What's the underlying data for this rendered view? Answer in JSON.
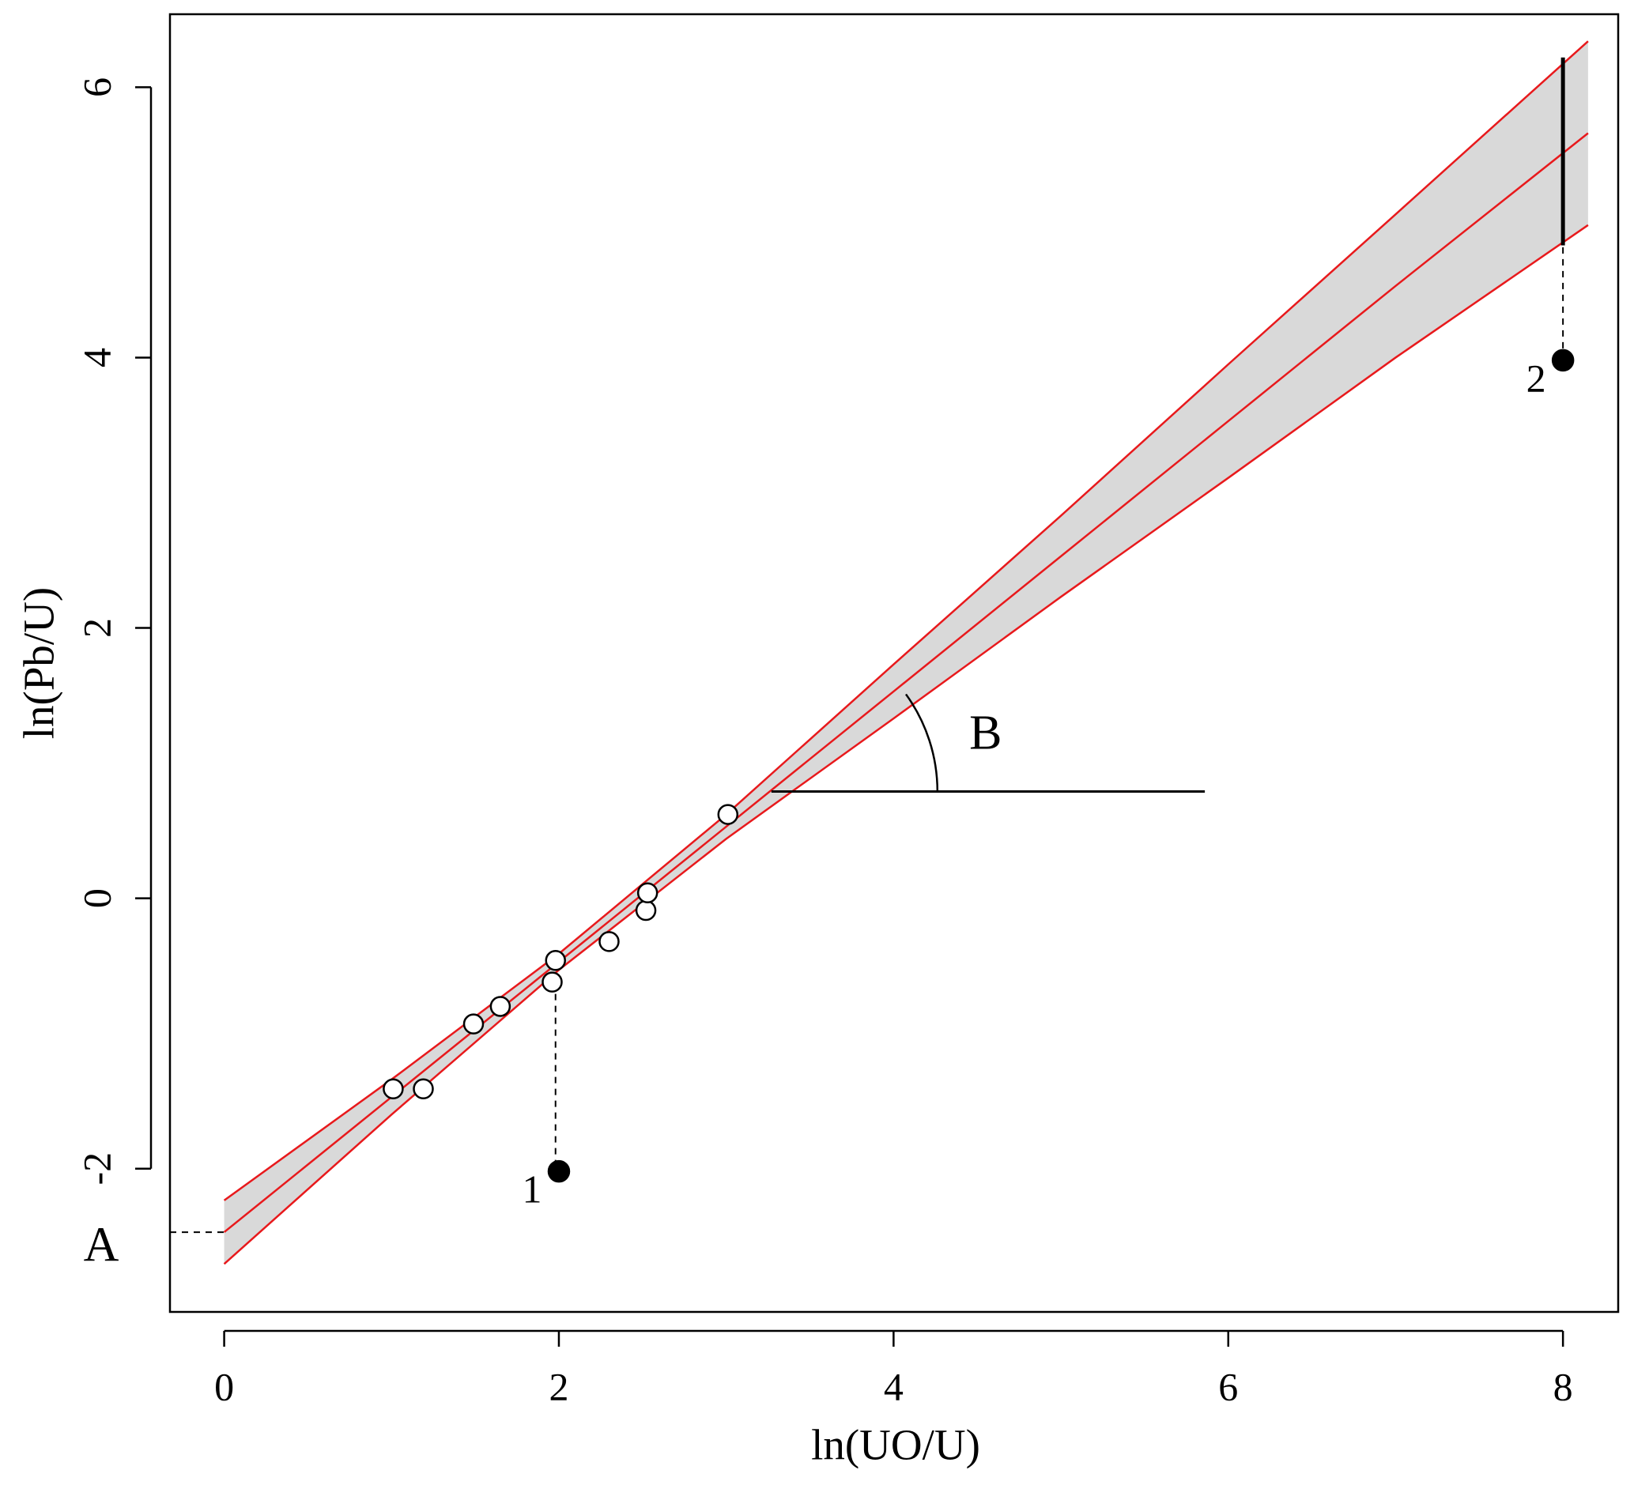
{
  "chart_data": {
    "type": "scatter",
    "x_label": "ln(UO/U)",
    "y_label": "ln(Pb/U)",
    "xlim": [
      -0.324,
      8.33
    ],
    "ylim": [
      -3.06,
      6.54
    ],
    "xticks": [
      0,
      2,
      4,
      6,
      8
    ],
    "yticks": [
      -2,
      0,
      2,
      4,
      6
    ],
    "series": [
      {
        "marker": "open",
        "color": "#000000",
        "x": [
          1.01,
          1.19,
          1.49,
          1.65,
          1.96,
          1.98,
          2.3,
          2.52,
          2.53,
          3.01
        ],
        "values": [
          -1.41,
          -1.41,
          -0.93,
          -0.8,
          -0.62,
          -0.46,
          -0.32,
          -0.09,
          0.04,
          0.62
        ]
      },
      {
        "marker": "filled",
        "color": "#000000",
        "x": [
          2.0,
          8.0
        ],
        "values": [
          -2.02,
          3.98
        ],
        "point_labels": [
          "1",
          "2"
        ]
      }
    ],
    "fit": {
      "color": "#e8191c",
      "band_color": "#d9d9d9",
      "x": [
        0,
        1,
        2,
        3,
        4,
        5,
        6,
        7,
        8.15
      ],
      "values": [
        -2.47,
        -1.47,
        -0.47,
        0.53,
        1.53,
        2.53,
        3.53,
        4.53,
        5.66
      ],
      "upper": [
        -2.235,
        -1.34,
        -0.41,
        0.62,
        1.73,
        2.83,
        3.95,
        5.06,
        6.34
      ],
      "lower": [
        -2.705,
        -1.6,
        -0.53,
        0.44,
        1.33,
        2.23,
        3.11,
        4.0,
        4.98
      ]
    },
    "segments": [
      {
        "x": [
          -0.324,
          0
        ],
        "y": [
          -2.47,
          -2.47
        ],
        "dashed": true,
        "width": 2
      },
      {
        "x": [
          1.98,
          1.98
        ],
        "y": [
          -0.62,
          -2.02
        ],
        "dashed": true,
        "width": 2
      },
      {
        "x": [
          8.0,
          8.0
        ],
        "y": [
          3.98,
          4.83
        ],
        "dashed": true,
        "width": 2
      },
      {
        "x": [
          8.0,
          8.0
        ],
        "y": [
          4.83,
          6.22
        ],
        "dashed": false,
        "width": 5
      },
      {
        "x": [
          3.27,
          5.86
        ],
        "y": [
          0.79,
          0.79
        ],
        "dashed": false,
        "width": 3
      }
    ],
    "annotations": [
      {
        "text": "A",
        "x": -0.324,
        "y": -2.47
      },
      {
        "text": "B",
        "x": 4.55,
        "y": 1.19
      }
    ]
  }
}
